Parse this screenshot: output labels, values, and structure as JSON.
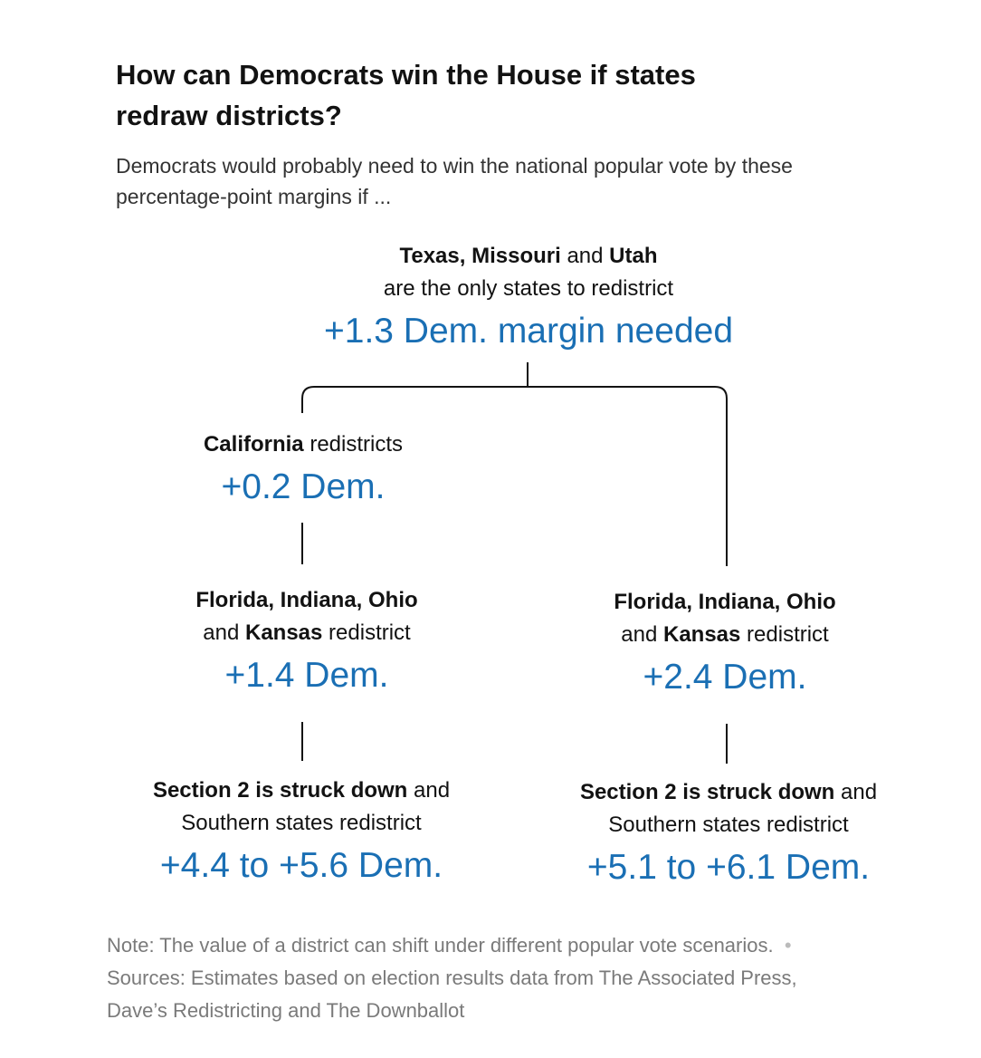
{
  "header": {
    "title": "How can Democrats win the House if states redraw districts?",
    "subtitle": "Democrats would probably need to win the national popular vote by these percentage-point margins if ..."
  },
  "nodes": [
    {
      "lines": [
        [
          {
            "text": "Texas, Missouri",
            "bold": true
          },
          {
            "text": " and ",
            "bold": false
          },
          {
            "text": "Utah",
            "bold": true
          }
        ],
        [
          {
            "text": "are the only states to redistrict",
            "bold": false
          }
        ]
      ],
      "margin": "+1.3 Dem. margin needed"
    },
    {
      "lines": [
        [
          {
            "text": "California",
            "bold": true
          },
          {
            "text": " redistricts",
            "bold": false
          }
        ]
      ],
      "margin": "+0.2 Dem."
    },
    {
      "lines": [
        [
          {
            "text": "Florida, Indiana, Ohio",
            "bold": true
          }
        ],
        [
          {
            "text": "and ",
            "bold": false
          },
          {
            "text": "Kansas",
            "bold": true
          },
          {
            "text": " redistrict",
            "bold": false
          }
        ]
      ],
      "margin": "+1.4 Dem."
    },
    {
      "lines": [
        [
          {
            "text": "Florida, Indiana, Ohio",
            "bold": true
          }
        ],
        [
          {
            "text": "and ",
            "bold": false
          },
          {
            "text": "Kansas",
            "bold": true
          },
          {
            "text": " redistrict",
            "bold": false
          }
        ]
      ],
      "margin": "+2.4 Dem."
    },
    {
      "lines": [
        [
          {
            "text": "Section 2 is struck down",
            "bold": true
          },
          {
            "text": " and",
            "bold": false
          }
        ],
        [
          {
            "text": "Southern states redistrict",
            "bold": false
          }
        ]
      ],
      "margin": "+4.4 to +5.6 Dem."
    },
    {
      "lines": [
        [
          {
            "text": "Section 2 is struck down",
            "bold": true
          },
          {
            "text": " and",
            "bold": false
          }
        ],
        [
          {
            "text": "Southern states redistrict",
            "bold": false
          }
        ]
      ],
      "margin": "+5.1 to +6.1 Dem."
    }
  ],
  "footer": {
    "note": "Note: The value of a district can shift under different popular vote scenarios.",
    "sources": "Sources: Estimates based on election results data from The Associated Press, Dave’s Redistricting and The Downballot"
  }
}
